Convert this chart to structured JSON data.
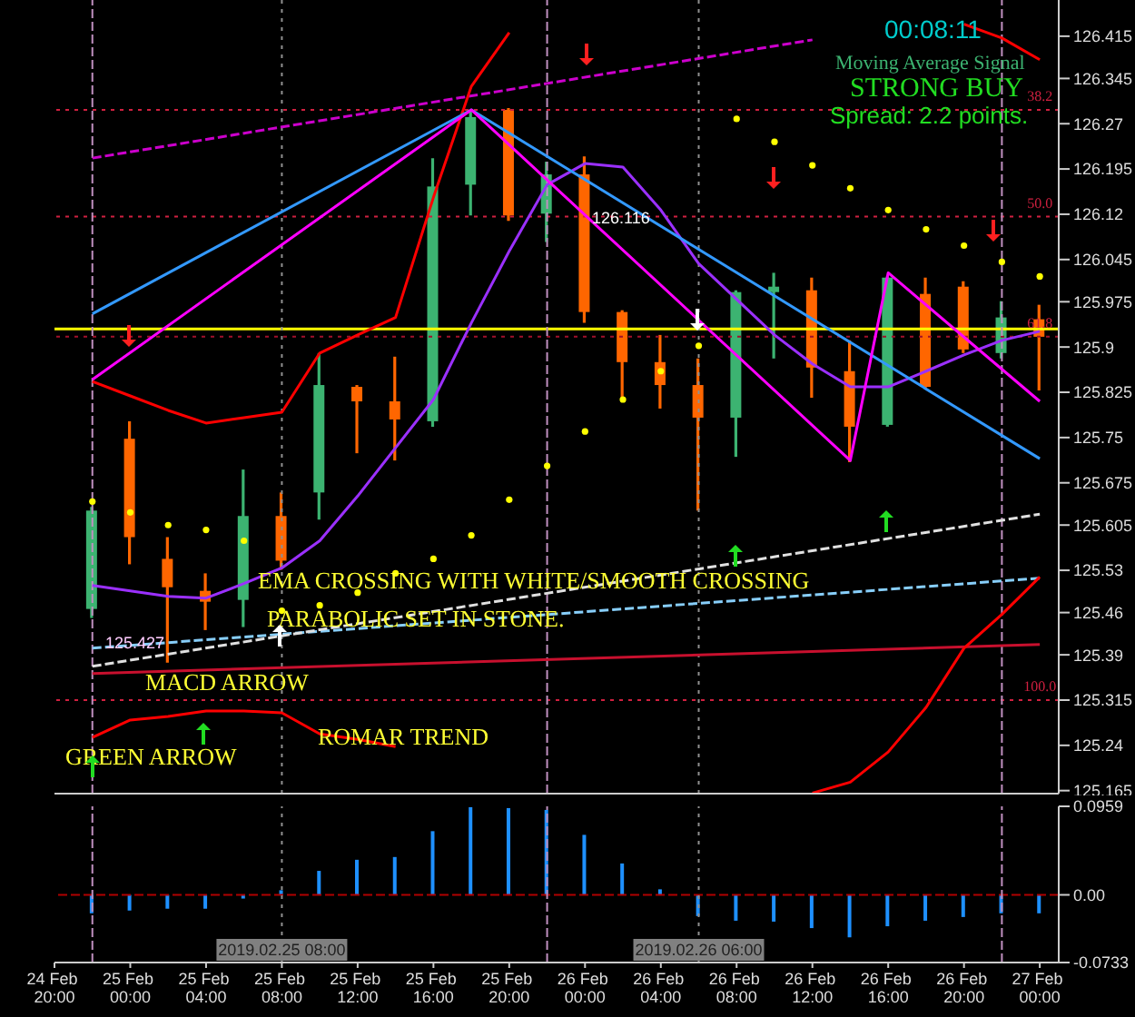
{
  "chart_data": [
    {
      "type": "candlestick",
      "x": [
        "2019-02-24T22:00",
        "2019-02-25T00:00",
        "2019-02-25T02:00",
        "2019-02-25T04:00",
        "2019-02-25T06:00",
        "2019-02-25T08:00",
        "2019-02-25T10:00",
        "2019-02-25T12:00",
        "2019-02-25T14:00",
        "2019-02-25T16:00",
        "2019-02-25T18:00",
        "2019-02-25T20:00",
        "2019-02-25T22:00",
        "2019-02-26T00:00",
        "2019-02-26T02:00",
        "2019-02-26T04:00",
        "2019-02-26T06:00",
        "2019-02-26T08:00",
        "2019-02-26T10:00",
        "2019-02-26T12:00",
        "2019-02-26T14:00",
        "2019-02-26T16:00",
        "2019-02-26T18:00",
        "2019-02-26T20:00",
        "2019-02-26T22:00",
        "2019-02-27T00:00"
      ],
      "ohlc": [
        [
          125.466,
          125.635,
          125.451,
          125.629
        ],
        [
          125.748,
          125.777,
          125.54,
          125.585
        ],
        [
          125.549,
          125.585,
          125.377,
          125.502
        ],
        [
          125.496,
          125.525,
          125.431,
          125.478
        ],
        [
          125.481,
          125.697,
          125.436,
          125.62
        ],
        [
          125.62,
          125.659,
          125.531,
          125.546
        ],
        [
          125.659,
          125.89,
          125.614,
          125.837
        ],
        [
          125.834,
          125.837,
          125.724,
          125.81
        ],
        [
          125.81,
          125.884,
          125.712,
          125.78
        ],
        [
          125.777,
          126.213,
          125.768,
          126.166
        ],
        [
          126.169,
          126.29,
          126.118,
          126.281
        ],
        [
          126.293,
          126.296,
          126.109,
          126.118
        ],
        [
          126.121,
          126.207,
          126.074,
          126.186
        ],
        [
          126.186,
          126.216,
          125.94,
          125.958
        ],
        [
          125.958,
          125.961,
          125.813,
          125.875
        ],
        [
          125.875,
          125.92,
          125.798,
          125.837
        ],
        [
          125.837,
          125.881,
          125.629,
          125.783
        ],
        [
          125.783,
          125.994,
          125.718,
          125.991
        ],
        [
          125.991,
          126.023,
          125.881,
          126.0
        ],
        [
          125.994,
          126.015,
          125.816,
          125.866
        ],
        [
          125.86,
          125.911,
          125.709,
          125.768
        ],
        [
          125.771,
          126.017,
          125.768,
          126.015
        ],
        [
          125.988,
          126.015,
          125.831,
          125.834
        ],
        [
          126.0,
          126.009,
          125.89,
          125.896
        ],
        [
          125.89,
          125.976,
          125.881,
          125.949
        ],
        [
          125.946,
          125.97,
          125.828,
          125.917
        ]
      ],
      "colors": [
        "#3cb371",
        "#ff6600",
        "#ff6600",
        "#ff6600",
        "#3cb371",
        "#ff6600",
        "#3cb371",
        "#ff6600",
        "#ff6600",
        "#3cb371",
        "#3cb371",
        "#ff6600",
        "#3cb371",
        "#ff6600",
        "#ff6600",
        "#ff6600",
        "#ff6600",
        "#3cb371",
        "#3cb371",
        "#ff6600",
        "#ff6600",
        "#3cb371",
        "#ff6600",
        "#ff6600",
        "#3cb371",
        "#ff6600"
      ],
      "series": [
        {
          "type": "line",
          "color": "#c8102e",
          "x": [
            "2019-02-24T22:00",
            "2019-02-27T00:00"
          ],
          "values": [
            125.359,
            125.407
          ]
        },
        {
          "type": "line",
          "color": "#87cefa",
          "line_style": "dashed",
          "x": [
            "2019-02-24T22:00",
            "2019-02-27T00:00"
          ],
          "values": [
            125.401,
            125.517
          ]
        },
        {
          "type": "line",
          "color": "#e0e0e0",
          "line_style": "dashed",
          "x": [
            "2019-02-24T22:00",
            "2019-02-27T00:00"
          ],
          "values": [
            125.371,
            125.623
          ]
        },
        {
          "type": "line",
          "color": "#cc00cc",
          "line_style": "dashed",
          "x": [
            "2019-02-24T22:00",
            "2019-02-26T12:00"
          ],
          "values": [
            126.213,
            126.409
          ]
        },
        {
          "type": "line",
          "color": "#ff0000",
          "values": [
            125.843,
            125.819,
            125.795,
            125.774,
            125.783,
            125.792,
            125.89,
            125.92,
            125.949,
            126.148,
            126.332,
            126.421,
            null,
            null,
            null,
            null,
            null,
            null,
            null,
            null,
            null,
            null,
            null,
            126.435,
            126.412,
            126.376
          ]
        },
        {
          "type": "line",
          "color": "#ff0000",
          "values": [
            125.253,
            125.282,
            125.288,
            125.297,
            125.297,
            125.294,
            125.259,
            125.25,
            125.238,
            null,
            null,
            null,
            null,
            null,
            null,
            null,
            null,
            null,
            null,
            125.161,
            125.179,
            125.229,
            125.303,
            125.401,
            125.457,
            125.519
          ]
        },
        {
          "type": "line",
          "color": "#9b30ff",
          "values": [
            125.505,
            125.496,
            125.487,
            125.484,
            125.508,
            125.534,
            125.579,
            125.653,
            125.733,
            125.813,
            125.94,
            126.059,
            126.169,
            126.204,
            126.198,
            126.127,
            126.038,
            125.979,
            125.92,
            125.872,
            125.834,
            125.834,
            125.86,
            125.887,
            125.911,
            125.926
          ]
        },
        {
          "type": "line",
          "color": "#3399ff",
          "x": [
            "2019-02-24T22:00",
            "2019-02-25T18:00",
            "2019-02-27T00:00"
          ],
          "values": [
            125.955,
            126.293,
            125.715
          ]
        },
        {
          "type": "line",
          "color": "#ff00ff",
          "x": [
            "2019-02-24T22:00",
            "2019-02-25T18:00",
            "2019-02-26T14:00",
            "2019-02-26T16:00",
            "2019-02-27T00:00"
          ],
          "values": [
            125.846,
            126.293,
            125.712,
            126.023,
            125.81
          ]
        },
        {
          "type": "scatter",
          "color": "#ffff00",
          "marker": "circle",
          "values": [
            125.644,
            125.626,
            125.605,
            125.597,
            125.579,
            125.463,
            125.472,
            125.493,
            125.525,
            125.549,
            125.588,
            125.647,
            125.703,
            125.76,
            125.813,
            125.86,
            125.902,
            126.278,
            126.24,
            126.201,
            126.163,
            126.127,
            126.095,
            126.068,
            126.041,
            126.017
          ]
        }
      ],
      "ref_lines": [
        {
          "axis": "y",
          "value": 125.93,
          "color": "#ffff00",
          "line_style": "solid"
        },
        {
          "axis": "y",
          "value": 126.293,
          "color": "#d02040",
          "line_style": "dotted"
        },
        {
          "axis": "y",
          "value": 126.116,
          "color": "#d02040",
          "line_style": "dotted"
        },
        {
          "axis": "y",
          "value": 125.917,
          "color": "#a0102a",
          "line_style": "dotted"
        },
        {
          "axis": "y",
          "value": 125.315,
          "color": "#d02040",
          "line_style": "dotted"
        },
        {
          "axis": "x",
          "value": "2019-02-25T08:00",
          "color": "#909090",
          "line_style": "dotted"
        },
        {
          "axis": "x",
          "value": "2019-02-26T06:00",
          "color": "#909090",
          "line_style": "dotted"
        },
        {
          "axis": "x",
          "value": "2019-02-24T22:00",
          "color": "#c090c0",
          "line_style": "dashed"
        },
        {
          "axis": "x",
          "value": "2019-02-25T22:00",
          "color": "#c090c0",
          "line_style": "dashed"
        },
        {
          "axis": "x",
          "value": "2019-02-26T22:00",
          "color": "#c090c0",
          "line_style": "dashed"
        }
      ],
      "annotations": [
        "00:08:11",
        "Moving Average Signal",
        "STRONG BUY",
        "Spread: 2.2 points.",
        "EMA CROSSING WITH WHITE/SMOOTH CROSSING",
        "PARABOLIC SET IN STONE.",
        "MACD ARROW",
        "GREEN ARROW",
        "ROMAR TREND",
        "126.116",
        "125.427",
        {
          "text": "38.2",
          "x": "2019-02-27T00:00",
          "y": 126.293
        },
        {
          "text": "50.0",
          "x": "2019-02-27T00:00",
          "y": 126.116
        },
        {
          "text": "61.8",
          "x": "2019-02-27T00:00",
          "y": 125.917
        },
        {
          "text": "100.0",
          "x": "2019-02-27T00:00",
          "y": 125.315
        }
      ],
      "xlim": [
        "2019-02-24T20:00",
        "2019-02-27T01:00"
      ],
      "ylim": [
        125.16,
        126.475
      ],
      "yticks": [
        125.165,
        125.24,
        125.315,
        125.39,
        125.46,
        125.53,
        125.605,
        125.675,
        125.75,
        125.825,
        125.9,
        125.975,
        126.045,
        126.12,
        126.195,
        126.27,
        126.345,
        126.415
      ],
      "tick_labels": "y"
    },
    {
      "type": "bar",
      "x": [
        "2019-02-24T22:00",
        "2019-02-25T00:00",
        "2019-02-25T02:00",
        "2019-02-25T04:00",
        "2019-02-25T06:00",
        "2019-02-25T08:00",
        "2019-02-25T10:00",
        "2019-02-25T12:00",
        "2019-02-25T14:00",
        "2019-02-25T16:00",
        "2019-02-25T18:00",
        "2019-02-25T20:00",
        "2019-02-25T22:00",
        "2019-02-26T00:00",
        "2019-02-26T02:00",
        "2019-02-26T04:00",
        "2019-02-26T06:00",
        "2019-02-26T08:00",
        "2019-02-26T10:00",
        "2019-02-26T12:00",
        "2019-02-26T14:00",
        "2019-02-26T16:00",
        "2019-02-26T18:00",
        "2019-02-26T20:00",
        "2019-02-26T22:00",
        "2019-02-27T00:00"
      ],
      "values": [
        -0.02,
        -0.017,
        -0.015,
        -0.015,
        -0.004,
        0.005,
        0.026,
        0.038,
        0.041,
        0.069,
        0.095,
        0.094,
        0.092,
        0.065,
        0.034,
        0.006,
        -0.023,
        -0.028,
        -0.029,
        -0.036,
        -0.046,
        -0.034,
        -0.028,
        -0.024,
        -0.02,
        -0.02
      ],
      "color": "#1e90ff",
      "ref_lines": [
        {
          "axis": "y",
          "value": 0,
          "color": "#b00000",
          "line_style": "dashed"
        },
        {
          "axis": "x",
          "value": "2019-02-25T08:00",
          "label": "2019.02.25 08:00",
          "color": "#909090",
          "line_style": "dotted"
        },
        {
          "axis": "x",
          "value": "2019-02-26T06:00",
          "label": "2019.02.26 06:00",
          "color": "#909090",
          "line_style": "dotted"
        },
        {
          "axis": "x",
          "value": "2019-02-24T22:00",
          "color": "#c090c0",
          "line_style": "dashed"
        },
        {
          "axis": "x",
          "value": "2019-02-25T22:00",
          "color": "#c090c0",
          "line_style": "dashed"
        },
        {
          "axis": "x",
          "value": "2019-02-26T22:00",
          "color": "#c090c0",
          "line_style": "dashed"
        }
      ],
      "xlim": [
        "2019-02-24T20:00",
        "2019-02-27T01:00"
      ],
      "xticks": [
        {
          "value": "2019-02-24T20:00",
          "label": "24 Feb 20:00"
        },
        {
          "value": "2019-02-25T00:00",
          "label": "25 Feb 00:00"
        },
        {
          "value": "2019-02-25T04:00",
          "label": "25 Feb 04:00"
        },
        {
          "value": "2019-02-25T08:00",
          "label": "25 Feb 08:00"
        },
        {
          "value": "2019-02-25T12:00",
          "label": "25 Feb 12:00"
        },
        {
          "value": "2019-02-25T16:00",
          "label": "25 Feb 16:00"
        },
        {
          "value": "2019-02-25T20:00",
          "label": "25 Feb 20:00"
        },
        {
          "value": "2019-02-26T00:00",
          "label": "26 Feb 00:00"
        },
        {
          "value": "2019-02-26T04:00",
          "label": "26 Feb 04:00"
        },
        {
          "value": "2019-02-26T08:00",
          "label": "26 Feb 08:00"
        },
        {
          "value": "2019-02-26T12:00",
          "label": "26 Feb 12:00"
        },
        {
          "value": "2019-02-26T16:00",
          "label": "26 Feb 16:00"
        },
        {
          "value": "2019-02-26T20:00",
          "label": "26 Feb 20:00"
        },
        {
          "value": "2019-02-27T00:00",
          "label": "27 Feb 00:00"
        }
      ],
      "ylim": [
        -0.0733,
        0.0959
      ],
      "yticks": [
        0.0959,
        {
          "value": 0,
          "label": "0.00"
        },
        -0.0733
      ]
    }
  ]
}
